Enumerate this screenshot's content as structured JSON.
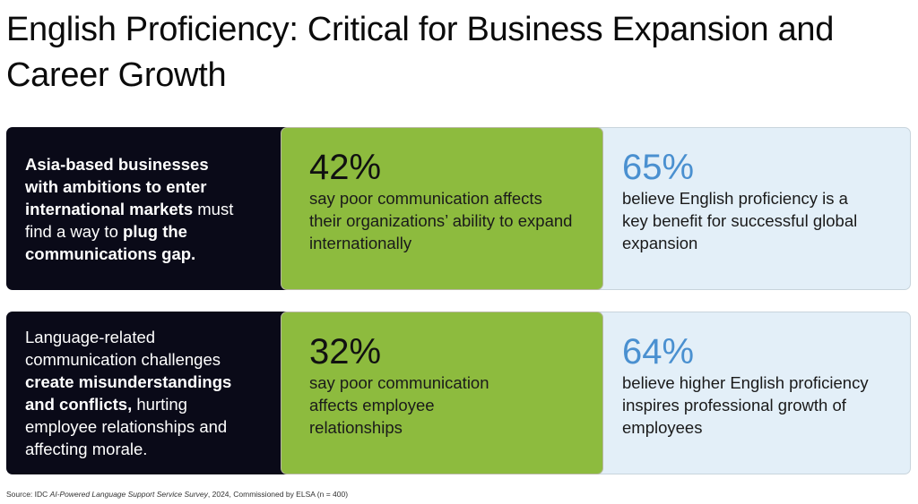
{
  "title": "English Proficiency: Critical for Business Expansion and Career Growth",
  "rows": [
    {
      "intro": [
        {
          "t": "Asia-based businesses with ambitions to enter international markets",
          "b": true
        },
        {
          "t": " must find a way to ",
          "b": false
        },
        {
          "t": "plug the communications gap.",
          "b": true
        }
      ],
      "stat1": {
        "value": "42%",
        "text": "say poor communication affects their organizations’ ability to expand internationally"
      },
      "stat2": {
        "value": "65%",
        "text": "believe English proficiency is a key benefit for successful global expansion"
      }
    },
    {
      "intro": [
        {
          "t": "Language-related communication challenges ",
          "b": false
        },
        {
          "t": "create misunderstandings and conflicts,",
          "b": true
        },
        {
          "t": " hurting employee relationships and affecting morale.",
          "b": false
        }
      ],
      "stat1": {
        "value": "32%",
        "text": "say poor communication affects employee relationships"
      },
      "stat2": {
        "value": "64%",
        "text": "believe higher English proficiency inspires professional growth of employees"
      }
    }
  ],
  "source": {
    "prefix": "Source: IDC ",
    "italic": "AI-Powered Language Support Service Survey",
    "suffix": ", 2024, Commissioned by ELSA (n = 400)"
  },
  "colors": {
    "dark": "#0a0a18",
    "green": "#8dbb3e",
    "light": "#e3eff8",
    "blue": "#4a90d0"
  }
}
